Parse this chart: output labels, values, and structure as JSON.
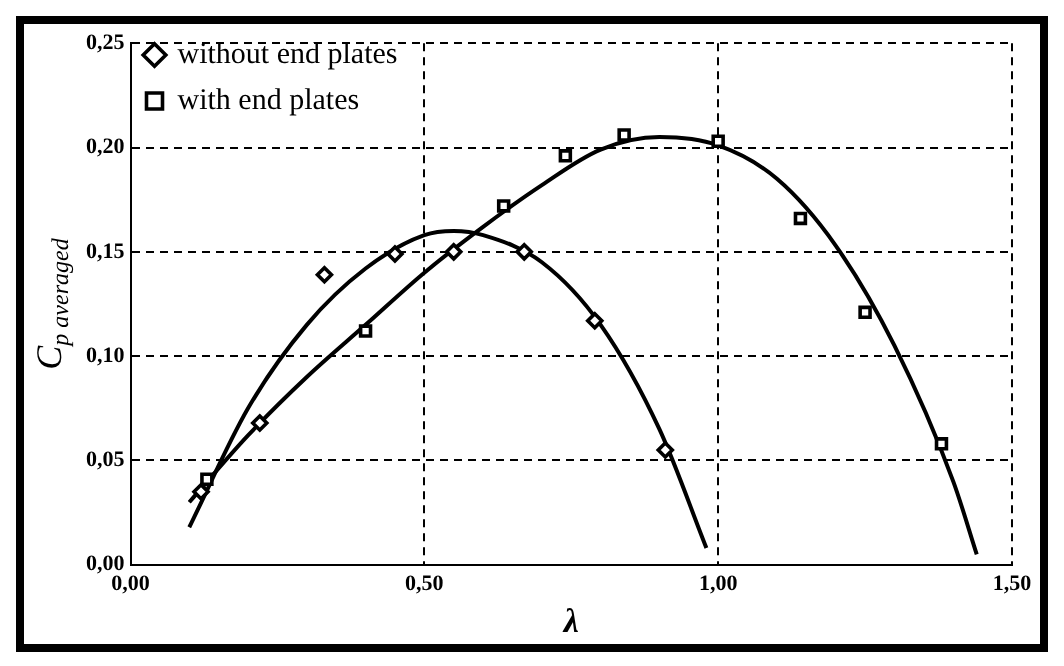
{
  "chart_data": {
    "type": "scatter",
    "xlabel": "λ",
    "ylabel": "C$_{p averaged}$",
    "xlim": [
      0,
      1.5
    ],
    "ylim": [
      0,
      0.25
    ],
    "xticks": [
      {
        "value": 0,
        "label": "0,00"
      },
      {
        "value": 0.5,
        "label": "0,50"
      },
      {
        "value": 1,
        "label": "1,00"
      },
      {
        "value": 1.5,
        "label": "1,50"
      }
    ],
    "yticks": [
      {
        "value": 0,
        "label": "0,00"
      },
      {
        "value": 0.05,
        "label": "0,05"
      },
      {
        "value": 0.1,
        "label": "0,10"
      },
      {
        "value": 0.15,
        "label": "0,15"
      },
      {
        "value": 0.2,
        "label": "0,20"
      },
      {
        "value": 0.25,
        "label": "0,25"
      }
    ],
    "grid": true,
    "legend": "top left",
    "series": [
      {
        "name": "without end plates",
        "marker": "diamond",
        "color": "#000000",
        "x": [
          0.12,
          0.22,
          0.33,
          0.45,
          0.55,
          0.67,
          0.79,
          0.91
        ],
        "values": [
          0.035,
          0.068,
          0.139,
          0.149,
          0.15,
          0.15,
          0.117,
          0.055
        ]
      },
      {
        "name": "with end plates",
        "marker": "square",
        "color": "#000000",
        "x": [
          0.13,
          0.4,
          0.635,
          0.74,
          0.84,
          1.0,
          1.14,
          1.25,
          1.38
        ],
        "values": [
          0.041,
          0.112,
          0.172,
          0.196,
          0.206,
          0.203,
          0.166,
          0.121,
          0.058
        ]
      },
      {
        "type": "line",
        "marker": "none",
        "color": "#000000",
        "x": [
          0.1,
          0.2,
          0.3,
          0.4,
          0.5,
          0.55,
          0.6,
          0.7,
          0.8,
          0.9,
          0.98
        ],
        "values": [
          0.018,
          0.075,
          0.115,
          0.142,
          0.158,
          0.16,
          0.158,
          0.145,
          0.115,
          0.065,
          0.008
        ]
      },
      {
        "type": "line",
        "marker": "none",
        "color": "#000000",
        "x": [
          0.1,
          0.2,
          0.3,
          0.4,
          0.5,
          0.6,
          0.7,
          0.8,
          0.9,
          1.0,
          1.1,
          1.2,
          1.3,
          1.4,
          1.44
        ],
        "values": [
          0.03,
          0.062,
          0.09,
          0.115,
          0.14,
          0.162,
          0.182,
          0.199,
          0.205,
          0.201,
          0.185,
          0.153,
          0.105,
          0.04,
          0.005
        ]
      }
    ]
  }
}
